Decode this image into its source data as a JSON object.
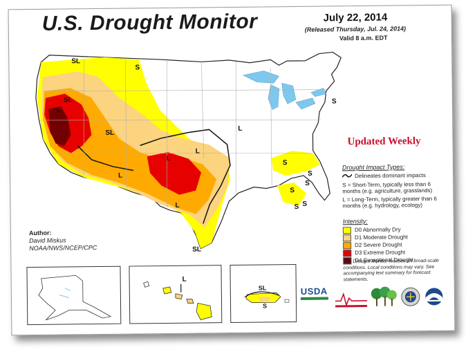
{
  "header": {
    "title": "U.S. Drought Monitor",
    "date": "July 22, 2014",
    "released": "(Released Thursday, Jul. 24, 2014)",
    "valid": "Valid 8 a.m. EDT"
  },
  "banner": "Updated Weekly",
  "author": {
    "label": "Author:",
    "name": "David Miskus",
    "org": "NOAA/NWS/NCEP/CPC"
  },
  "impact_types": {
    "heading": "Drought Impact Types:",
    "items": [
      {
        "symbol": "",
        "text": "Delineates dominant impacts"
      },
      {
        "symbol": "S",
        "text": "S = Short-Term, typically less than 6 months (e.g. agriculture, grasslands)"
      },
      {
        "symbol": "L",
        "text": "L = Long-Term, typically greater than 6 months (e.g. hydrology, ecology)"
      }
    ]
  },
  "intensity": {
    "heading": "Intensity:",
    "levels": [
      {
        "label": "D0 Abnormally Dry",
        "color": "#ffff00"
      },
      {
        "label": "D1 Moderate Drought",
        "color": "#fcd37f"
      },
      {
        "label": "D2 Severe Drought",
        "color": "#ffaa00"
      },
      {
        "label": "D3 Extreme Drought",
        "color": "#e60000"
      },
      {
        "label": "D4 Exceptional Drought",
        "color": "#730000"
      }
    ]
  },
  "note": "The Drought Monitor focuses on broad-scale conditions. Local conditions may vary. See accompanying text summary for forecast statements.",
  "map_labels": {
    "sl": "SL",
    "s": "S",
    "l": "L"
  },
  "logos": {
    "usda": "USDA"
  },
  "colors": {
    "water": "#7ec8ee",
    "border": "#222222",
    "state_line": "#b0b0b0"
  }
}
